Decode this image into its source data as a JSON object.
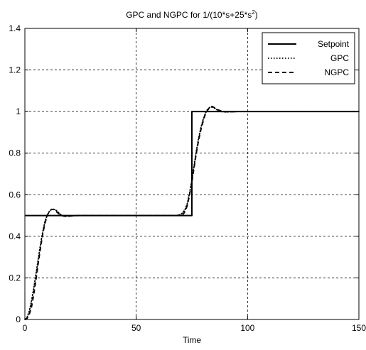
{
  "chart_data": {
    "type": "line",
    "title": "GPC and NGPC for 1/(10*s+25*s",
    "title_superscript": "2",
    "title_suffix": ")",
    "xlabel": "Time",
    "ylabel": "",
    "xlim": [
      0,
      150
    ],
    "ylim": [
      0,
      1.4
    ],
    "xticks": [
      0,
      50,
      100,
      150
    ],
    "yticks": [
      0,
      0.2,
      0.4,
      0.6,
      0.8,
      1,
      1.2,
      1.4
    ],
    "xtick_labels": [
      "0",
      "50",
      "100",
      "150"
    ],
    "ytick_labels": [
      "0",
      "0.2",
      "0.4",
      "0.6",
      "0.8",
      "1",
      "1.2",
      "1.4"
    ],
    "grid": true,
    "legend_position": "top-right",
    "series": [
      {
        "name": "Setpoint",
        "style": "solid",
        "color": "#000000",
        "x": [
          0,
          75,
          75,
          150
        ],
        "y": [
          0.5,
          0.5,
          1.0,
          1.0
        ]
      },
      {
        "name": "GPC",
        "style": "dotted",
        "color": "#000000",
        "x": [
          0,
          1,
          2,
          3,
          4,
          5,
          6,
          7,
          8,
          9,
          10,
          11,
          12,
          13,
          14,
          15,
          16,
          17,
          18,
          20,
          22,
          25,
          28,
          30,
          40,
          50,
          60,
          68,
          70,
          71,
          72,
          73,
          74,
          75,
          76,
          77,
          78,
          79,
          80,
          81,
          82,
          83,
          84,
          85,
          86,
          88,
          90,
          93,
          96,
          100,
          150
        ],
        "y": [
          0.0,
          0.01,
          0.04,
          0.09,
          0.15,
          0.22,
          0.29,
          0.36,
          0.42,
          0.47,
          0.5,
          0.52,
          0.53,
          0.53,
          0.525,
          0.515,
          0.505,
          0.5,
          0.497,
          0.497,
          0.499,
          0.5,
          0.5,
          0.5,
          0.5,
          0.5,
          0.5,
          0.5,
          0.505,
          0.515,
          0.53,
          0.56,
          0.61,
          0.67,
          0.74,
          0.81,
          0.87,
          0.92,
          0.96,
          0.99,
          1.01,
          1.02,
          1.022,
          1.018,
          1.01,
          1.0,
          0.998,
          0.999,
          1.0,
          1.0,
          1.0
        ]
      },
      {
        "name": "NGPC",
        "style": "dashed",
        "color": "#000000",
        "x": [
          0,
          1,
          2,
          3,
          4,
          5,
          6,
          7,
          8,
          9,
          10,
          11,
          12,
          13,
          14,
          15,
          16,
          17,
          18,
          20,
          22,
          25,
          28,
          30,
          40,
          50,
          60,
          68,
          70,
          71,
          72,
          73,
          74,
          75,
          76,
          77,
          78,
          79,
          80,
          81,
          82,
          83,
          84,
          85,
          86,
          88,
          90,
          93,
          96,
          100,
          150
        ],
        "y": [
          0.0,
          0.005,
          0.025,
          0.06,
          0.12,
          0.19,
          0.27,
          0.34,
          0.41,
          0.46,
          0.5,
          0.52,
          0.53,
          0.528,
          0.52,
          0.51,
          0.503,
          0.498,
          0.496,
          0.497,
          0.499,
          0.5,
          0.5,
          0.5,
          0.5,
          0.5,
          0.5,
          0.5,
          0.5,
          0.505,
          0.52,
          0.55,
          0.6,
          0.66,
          0.73,
          0.8,
          0.86,
          0.91,
          0.95,
          0.985,
          1.005,
          1.02,
          1.025,
          1.02,
          1.012,
          1.003,
          0.999,
          0.999,
          1.0,
          1.0,
          1.0
        ]
      }
    ]
  }
}
